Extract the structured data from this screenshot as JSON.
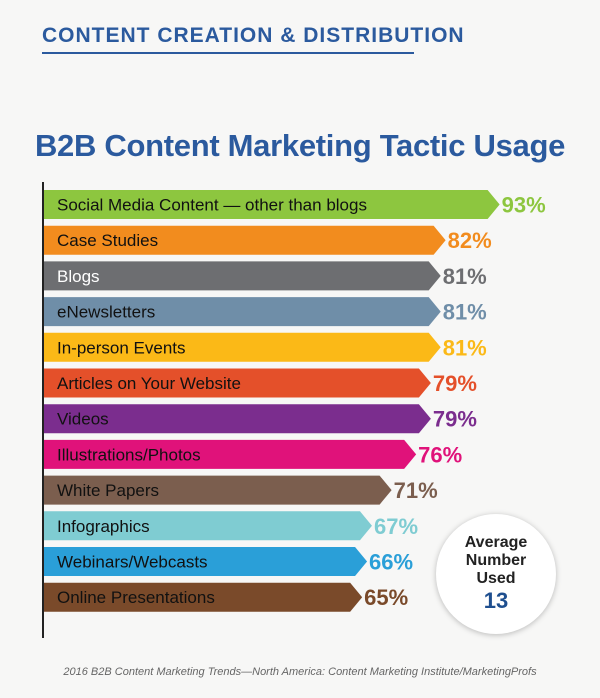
{
  "header": {
    "section_title": "CONTENT CREATION & DISTRIBUTION"
  },
  "colors": {
    "brand_blue": "#2b5a9e",
    "avg_value": "#1f4f8f"
  },
  "chart_data": {
    "type": "bar",
    "orientation": "horizontal",
    "title": "B2B Content Marketing Tactic Usage",
    "categories": [
      "Social Media Content — other than blogs",
      "Case Studies",
      "Blogs",
      "eNewsletters",
      "In-person Events",
      "Articles on Your Website",
      "Videos",
      "Illustrations/Photos",
      "White Papers",
      "Infographics",
      "Webinars/Webcasts",
      "Online Presentations"
    ],
    "values": [
      93,
      82,
      81,
      81,
      81,
      79,
      79,
      76,
      71,
      67,
      66,
      65
    ],
    "value_labels": [
      "93%",
      "82%",
      "81%",
      "81%",
      "81%",
      "79%",
      "79%",
      "76%",
      "71%",
      "67%",
      "66%",
      "65%"
    ],
    "colors": [
      "#8dc63f",
      "#f28c1e",
      "#6d6e71",
      "#6f8ea8",
      "#fbb917",
      "#e4502a",
      "#7b2d8e",
      "#e0127a",
      "#7b5e4e",
      "#7fccd2",
      "#2a9fd8",
      "#7a4a2a"
    ],
    "unit": "%"
  },
  "average": {
    "label": "Average Number Used",
    "value": "13"
  },
  "footer": {
    "source": "2016 B2B Content Marketing Trends—North America: Content Marketing Institute/MarketingProfs"
  }
}
